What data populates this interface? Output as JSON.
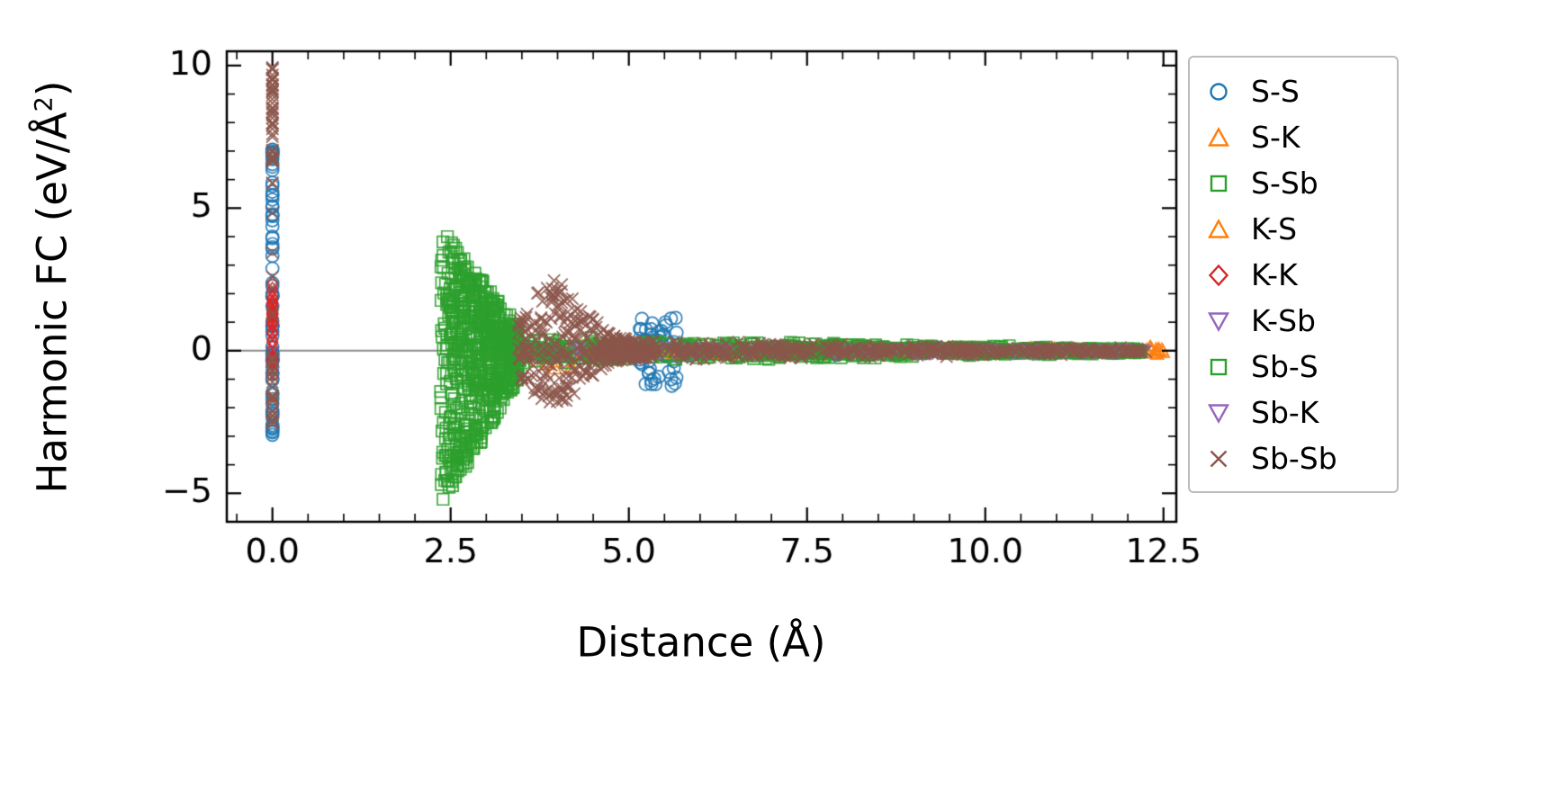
{
  "figure": {
    "xlabel": "Distance (Å)",
    "ylabel_prefix": "Harmonic FC (eV/Å",
    "ylabel_sup": "2",
    "ylabel_suffix": ")"
  },
  "chart_data": {
    "type": "scatter",
    "title": "",
    "xlabel": "Distance (Å)",
    "ylabel": "Harmonic FC (eV/Å²)",
    "xlim": [
      -0.64,
      12.68
    ],
    "ylim": [
      -6.0,
      10.5
    ],
    "grid": false,
    "legend_position": "outside-right",
    "zero_line": {
      "y": 0,
      "color": "#8a8a8a"
    },
    "xticks": {
      "values": [
        0,
        2.5,
        5,
        7.5,
        10,
        12.5
      ],
      "labels": [
        "0.0",
        "2.5",
        "5.0",
        "7.5",
        "10.0",
        "12.5"
      ],
      "minor_step": 0.5
    },
    "yticks": {
      "values": [
        -5,
        0,
        5,
        10
      ],
      "labels": [
        "−5",
        "0",
        "5",
        "10"
      ],
      "minor_step": 1
    },
    "representation": "cluster_envelope",
    "series": [
      {
        "name": "S-S",
        "marker": "circle",
        "color": "#1f77b4",
        "clusters": [
          {
            "x": [
              0,
              0
            ],
            "y": [
              -3.6,
              7.2
            ],
            "n": 75
          },
          {
            "x": [
              5.15,
              5.68
            ],
            "y": [
              -1.35,
              1.15
            ],
            "n": 55
          },
          {
            "x": [
              3.5,
              12.3
            ],
            "band": [
              0.28,
              0.07
            ],
            "n": 160
          }
        ]
      },
      {
        "name": "S-K",
        "marker": "triangle-up",
        "color": "#ff7f0e",
        "clusters": [
          {
            "x": [
              3.4,
              4.2
            ],
            "y": [
              -0.75,
              0.2
            ],
            "n": 10
          },
          {
            "x": [
              4.2,
              12.2
            ],
            "band": [
              0.15,
              0.06
            ],
            "n": 45
          },
          {
            "x": [
              12.25,
              12.5
            ],
            "y": [
              -0.12,
              0.12
            ],
            "n": 6
          }
        ]
      },
      {
        "name": "S-Sb",
        "marker": "square",
        "color": "#2ca02c",
        "clusters": [
          {
            "x": [
              2.36,
              3.45
            ],
            "fan": {
              "pos": [
                4.3,
                0.9
              ],
              "neg": [
                -5.6,
                -1.0
              ]
            },
            "n": 420
          },
          {
            "x": [
              3.45,
              12.2
            ],
            "band": [
              0.55,
              0.1
            ],
            "n": 380
          }
        ]
      },
      {
        "name": "K-S",
        "marker": "triangle-up",
        "color": "#ff7f0e",
        "clusters": [
          {
            "x": [
              3.5,
              12.45
            ],
            "band": [
              0.14,
              0.07
            ],
            "n": 40
          },
          {
            "x": [
              12.3,
              12.5
            ],
            "y": [
              -0.1,
              0.1
            ],
            "n": 5
          }
        ]
      },
      {
        "name": "K-K",
        "marker": "diamond",
        "color": "#d62728",
        "clusters": [
          {
            "x": [
              0,
              0
            ],
            "y": [
              -0.75,
              2.55
            ],
            "n": 30
          },
          {
            "x": [
              4.0,
              11.8
            ],
            "band": [
              0.1,
              0.05
            ],
            "n": 18
          }
        ]
      },
      {
        "name": "K-Sb",
        "marker": "triangle-down",
        "color": "#9467bd",
        "clusters": [
          {
            "x": [
              3.6,
              12.3
            ],
            "band": [
              0.16,
              0.07
            ],
            "n": 55
          }
        ]
      },
      {
        "name": "Sb-S",
        "marker": "square",
        "color": "#2ca02c",
        "clusters": [
          {
            "x": [
              2.36,
              3.45
            ],
            "fan": {
              "pos": [
                4.3,
                0.9
              ],
              "neg": [
                -5.6,
                -1.0
              ]
            },
            "n": 260
          },
          {
            "x": [
              3.45,
              12.2
            ],
            "band": [
              0.5,
              0.1
            ],
            "n": 300
          }
        ]
      },
      {
        "name": "Sb-K",
        "marker": "triangle-down",
        "color": "#9467bd",
        "clusters": [
          {
            "x": [
              3.6,
              12.3
            ],
            "band": [
              0.16,
              0.07
            ],
            "n": 45
          }
        ]
      },
      {
        "name": "Sb-Sb",
        "marker": "x",
        "color": "#8c564b",
        "clusters": [
          {
            "x": [
              0,
              0
            ],
            "y": [
              6.6,
              9.95
            ],
            "n": 45
          },
          {
            "x": [
              0,
              0
            ],
            "y": [
              -2.65,
              -0.2
            ],
            "n": 25
          },
          {
            "x": [
              0,
              0
            ],
            "y": [
              0.5,
              6.6
            ],
            "n": 8
          },
          {
            "x": [
              3.45,
              5.35
            ],
            "peak": {
              "amp": 2.2,
              "center": 3.95,
              "width": 0.55,
              "base": 0.35,
              "asym": 0.75
            },
            "n": 380
          },
          {
            "x": [
              5.35,
              12.3
            ],
            "band": [
              0.38,
              0.1
            ],
            "n": 420
          }
        ]
      }
    ]
  }
}
